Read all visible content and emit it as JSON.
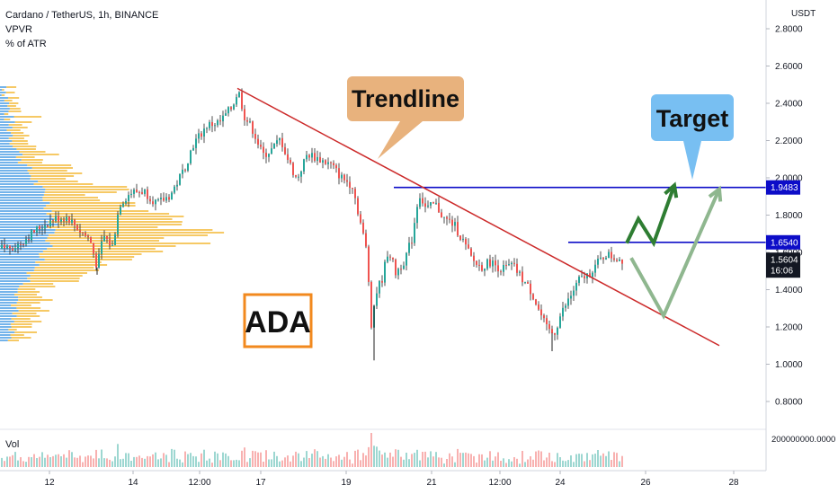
{
  "header": {
    "symbol_line": "Cardano / TetherUS, 1h, BINANCE",
    "indicator_1": "VPVR",
    "indicator_2": "% of ATR"
  },
  "price_axis": {
    "currency": "USDT",
    "ticks": [
      "2.8000",
      "2.6000",
      "2.4000",
      "2.2000",
      "2.0000",
      "1.8000",
      "1.6000",
      "1.4000",
      "1.2000",
      "1.0000",
      "0.8000"
    ]
  },
  "price_labels": {
    "target": "1.9483",
    "resistance": "1.6540",
    "current_price": "1.5604",
    "countdown": "16:06"
  },
  "volume_pane": {
    "label": "Vol",
    "axis_tick": "200000000.0000"
  },
  "time_axis": {
    "ticks": [
      "12",
      "14",
      "12:00",
      "17",
      "19",
      "21",
      "12:00",
      "24",
      "26",
      "28"
    ]
  },
  "annotations": {
    "trendline_callout": "Trendline",
    "target_callout": "Target",
    "asset_label": "ADA"
  },
  "colors": {
    "up_candle": "#26a69a",
    "down_candle": "#ef5350",
    "trendline": "#cc2a2a",
    "level_line": "#0d0dc8",
    "trendline_callout_bg": "#e8b27d",
    "target_callout_bg": "#78bff2",
    "asset_box_border": "#f2891e",
    "projection_green": "#2e7d32",
    "projection_light_green": "#8fb78f",
    "vpvr_blue": "#5ba6e6",
    "vpvr_yellow": "#f5c04a"
  },
  "chart_data": {
    "type": "candlestick",
    "symbol": "Cardano / TetherUS",
    "interval": "1h",
    "exchange": "BINANCE",
    "ylim": [
      0.7,
      2.95
    ],
    "y_scale": "linear",
    "grid": false,
    "x_tick_labels": [
      "12",
      "14",
      "12:00",
      "17",
      "19",
      "21",
      "12:00",
      "24",
      "26",
      "28"
    ],
    "price_path": [
      {
        "x": 0,
        "price": 1.62
      },
      {
        "x": 20,
        "price": 1.64
      },
      {
        "x": 40,
        "price": 1.72
      },
      {
        "x": 60,
        "price": 1.78
      },
      {
        "x": 75,
        "price": 1.79
      },
      {
        "x": 90,
        "price": 1.71
      },
      {
        "x": 100,
        "price": 1.67
      },
      {
        "x": 108,
        "price": 1.52
      },
      {
        "x": 115,
        "price": 1.69
      },
      {
        "x": 125,
        "price": 1.63
      },
      {
        "x": 133,
        "price": 1.86
      },
      {
        "x": 145,
        "price": 1.92
      },
      {
        "x": 160,
        "price": 1.93
      },
      {
        "x": 175,
        "price": 1.86
      },
      {
        "x": 190,
        "price": 1.91
      },
      {
        "x": 205,
        "price": 2.05
      },
      {
        "x": 215,
        "price": 2.18
      },
      {
        "x": 230,
        "price": 2.28
      },
      {
        "x": 245,
        "price": 2.3
      },
      {
        "x": 258,
        "price": 2.38
      },
      {
        "x": 265,
        "price": 2.47
      },
      {
        "x": 272,
        "price": 2.33
      },
      {
        "x": 282,
        "price": 2.25
      },
      {
        "x": 292,
        "price": 2.12
      },
      {
        "x": 302,
        "price": 2.15
      },
      {
        "x": 312,
        "price": 2.21
      },
      {
        "x": 320,
        "price": 2.1
      },
      {
        "x": 330,
        "price": 1.99
      },
      {
        "x": 342,
        "price": 2.13
      },
      {
        "x": 355,
        "price": 2.1
      },
      {
        "x": 368,
        "price": 2.07
      },
      {
        "x": 380,
        "price": 2.0
      },
      {
        "x": 392,
        "price": 1.96
      },
      {
        "x": 400,
        "price": 1.78
      },
      {
        "x": 408,
        "price": 1.6
      },
      {
        "x": 413,
        "price": 1.22
      },
      {
        "x": 418,
        "price": 1.38
      },
      {
        "x": 425,
        "price": 1.46
      },
      {
        "x": 432,
        "price": 1.62
      },
      {
        "x": 440,
        "price": 1.49
      },
      {
        "x": 450,
        "price": 1.56
      },
      {
        "x": 458,
        "price": 1.67
      },
      {
        "x": 466,
        "price": 1.92
      },
      {
        "x": 474,
        "price": 1.83
      },
      {
        "x": 484,
        "price": 1.86
      },
      {
        "x": 494,
        "price": 1.78
      },
      {
        "x": 505,
        "price": 1.75
      },
      {
        "x": 515,
        "price": 1.66
      },
      {
        "x": 525,
        "price": 1.56
      },
      {
        "x": 535,
        "price": 1.52
      },
      {
        "x": 545,
        "price": 1.55
      },
      {
        "x": 558,
        "price": 1.51
      },
      {
        "x": 570,
        "price": 1.53
      },
      {
        "x": 582,
        "price": 1.45
      },
      {
        "x": 592,
        "price": 1.38
      },
      {
        "x": 600,
        "price": 1.28
      },
      {
        "x": 608,
        "price": 1.19
      },
      {
        "x": 616,
        "price": 1.16
      },
      {
        "x": 624,
        "price": 1.27
      },
      {
        "x": 634,
        "price": 1.36
      },
      {
        "x": 644,
        "price": 1.45
      },
      {
        "x": 654,
        "price": 1.48
      },
      {
        "x": 664,
        "price": 1.54
      },
      {
        "x": 674,
        "price": 1.59
      },
      {
        "x": 684,
        "price": 1.57
      },
      {
        "x": 694,
        "price": 1.5604
      }
    ],
    "lows": [
      {
        "x": 108,
        "price": 1.48
      },
      {
        "x": 413,
        "price": 1.22
      },
      {
        "x": 416,
        "price": 1.02
      },
      {
        "x": 614,
        "price": 1.07
      }
    ],
    "levels": [
      {
        "label": "1.9483",
        "price": 1.9483,
        "from_x": 438
      },
      {
        "label": "1.6540",
        "price": 1.654,
        "from_x": 632
      }
    ],
    "trendline": [
      {
        "x": 264,
        "price": 2.48
      },
      {
        "x": 800,
        "price": 1.1
      }
    ],
    "projection_primary": [
      {
        "x": 697,
        "price": 1.65
      },
      {
        "x": 710,
        "price": 1.78
      },
      {
        "x": 727,
        "price": 1.65
      },
      {
        "x": 750,
        "price": 1.96
      }
    ],
    "projection_alternate": [
      {
        "x": 702,
        "price": 1.57
      },
      {
        "x": 738,
        "price": 1.26
      },
      {
        "x": 800,
        "price": 1.94
      }
    ],
    "current_price": 1.5604
  }
}
